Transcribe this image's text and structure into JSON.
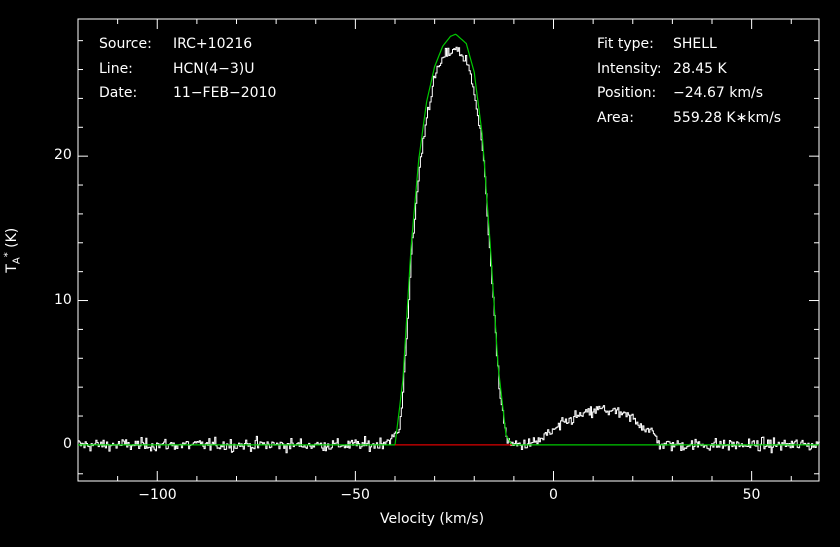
{
  "annotations_left": [
    {
      "key": "Source:",
      "value": "IRC+10216"
    },
    {
      "key": "Line:",
      "value": "HCN(4−3)U"
    },
    {
      "key": "Date:",
      "value": "11−FEB−2010"
    }
  ],
  "annotations_right": [
    {
      "key": "Fit type:",
      "value": "SHELL"
    },
    {
      "key": "Intensity:",
      "value": "28.45 K"
    },
    {
      "key": "Position:",
      "value": "−24.67 km/s"
    },
    {
      "key": "Area:",
      "value": "559.28 K∗km/s"
    }
  ],
  "chart_data": {
    "type": "line",
    "xlabel": "Velocity (km/s)",
    "ylabel": "T_A^* (K)",
    "xlim": [
      -120,
      67
    ],
    "ylim": [
      -2.5,
      29.5
    ],
    "x_ticks": [
      -100,
      -50,
      0,
      50
    ],
    "x_tick_labels": [
      "−100",
      "−50",
      "0",
      "50"
    ],
    "y_ticks": [
      0,
      10,
      20
    ],
    "y_tick_labels": [
      "0",
      "10",
      "20"
    ],
    "series": [
      {
        "kind": "observed spectrum",
        "color": "#ffffff",
        "x": [
          -120,
          -100,
          -80,
          -60,
          -45,
          -41,
          -39,
          -38,
          -36,
          -34,
          -32,
          -30,
          -28,
          -26,
          -25,
          -24,
          -22,
          -20,
          -18,
          -16,
          -14,
          -12,
          -11,
          -10,
          -5,
          0,
          5,
          10,
          12,
          15,
          20,
          25,
          27,
          30,
          40,
          50,
          67
        ],
        "y": [
          0.0,
          0.0,
          0.0,
          0.0,
          0.0,
          0.4,
          1.0,
          4.0,
          13.0,
          19.0,
          23.0,
          25.5,
          26.8,
          27.3,
          27.5,
          27.3,
          26.5,
          24.5,
          20.5,
          13.0,
          4.5,
          0.5,
          0.0,
          0.0,
          0.1,
          1.0,
          1.9,
          2.3,
          2.5,
          2.3,
          1.8,
          0.8,
          0.0,
          0.0,
          0.0,
          0.0,
          0.0
        ],
        "noise_rms": 0.3
      },
      {
        "kind": "shell fit",
        "color": "#00c800",
        "x": [
          -120,
          -40,
          -38,
          -36,
          -34,
          -32,
          -30,
          -28,
          -26,
          -24.67,
          -22,
          -20,
          -18,
          -16,
          -14,
          -12,
          -10.5,
          67
        ],
        "y": [
          0.0,
          0.0,
          4.5,
          13.5,
          19.8,
          23.8,
          26.2,
          27.6,
          28.3,
          28.45,
          27.8,
          25.8,
          21.5,
          14.0,
          5.5,
          0.7,
          0.0,
          0.0
        ]
      },
      {
        "kind": "fit window baseline",
        "color": "#dc0000",
        "x": [
          -40,
          -10.5
        ],
        "y": [
          0.0,
          0.0
        ]
      }
    ]
  }
}
